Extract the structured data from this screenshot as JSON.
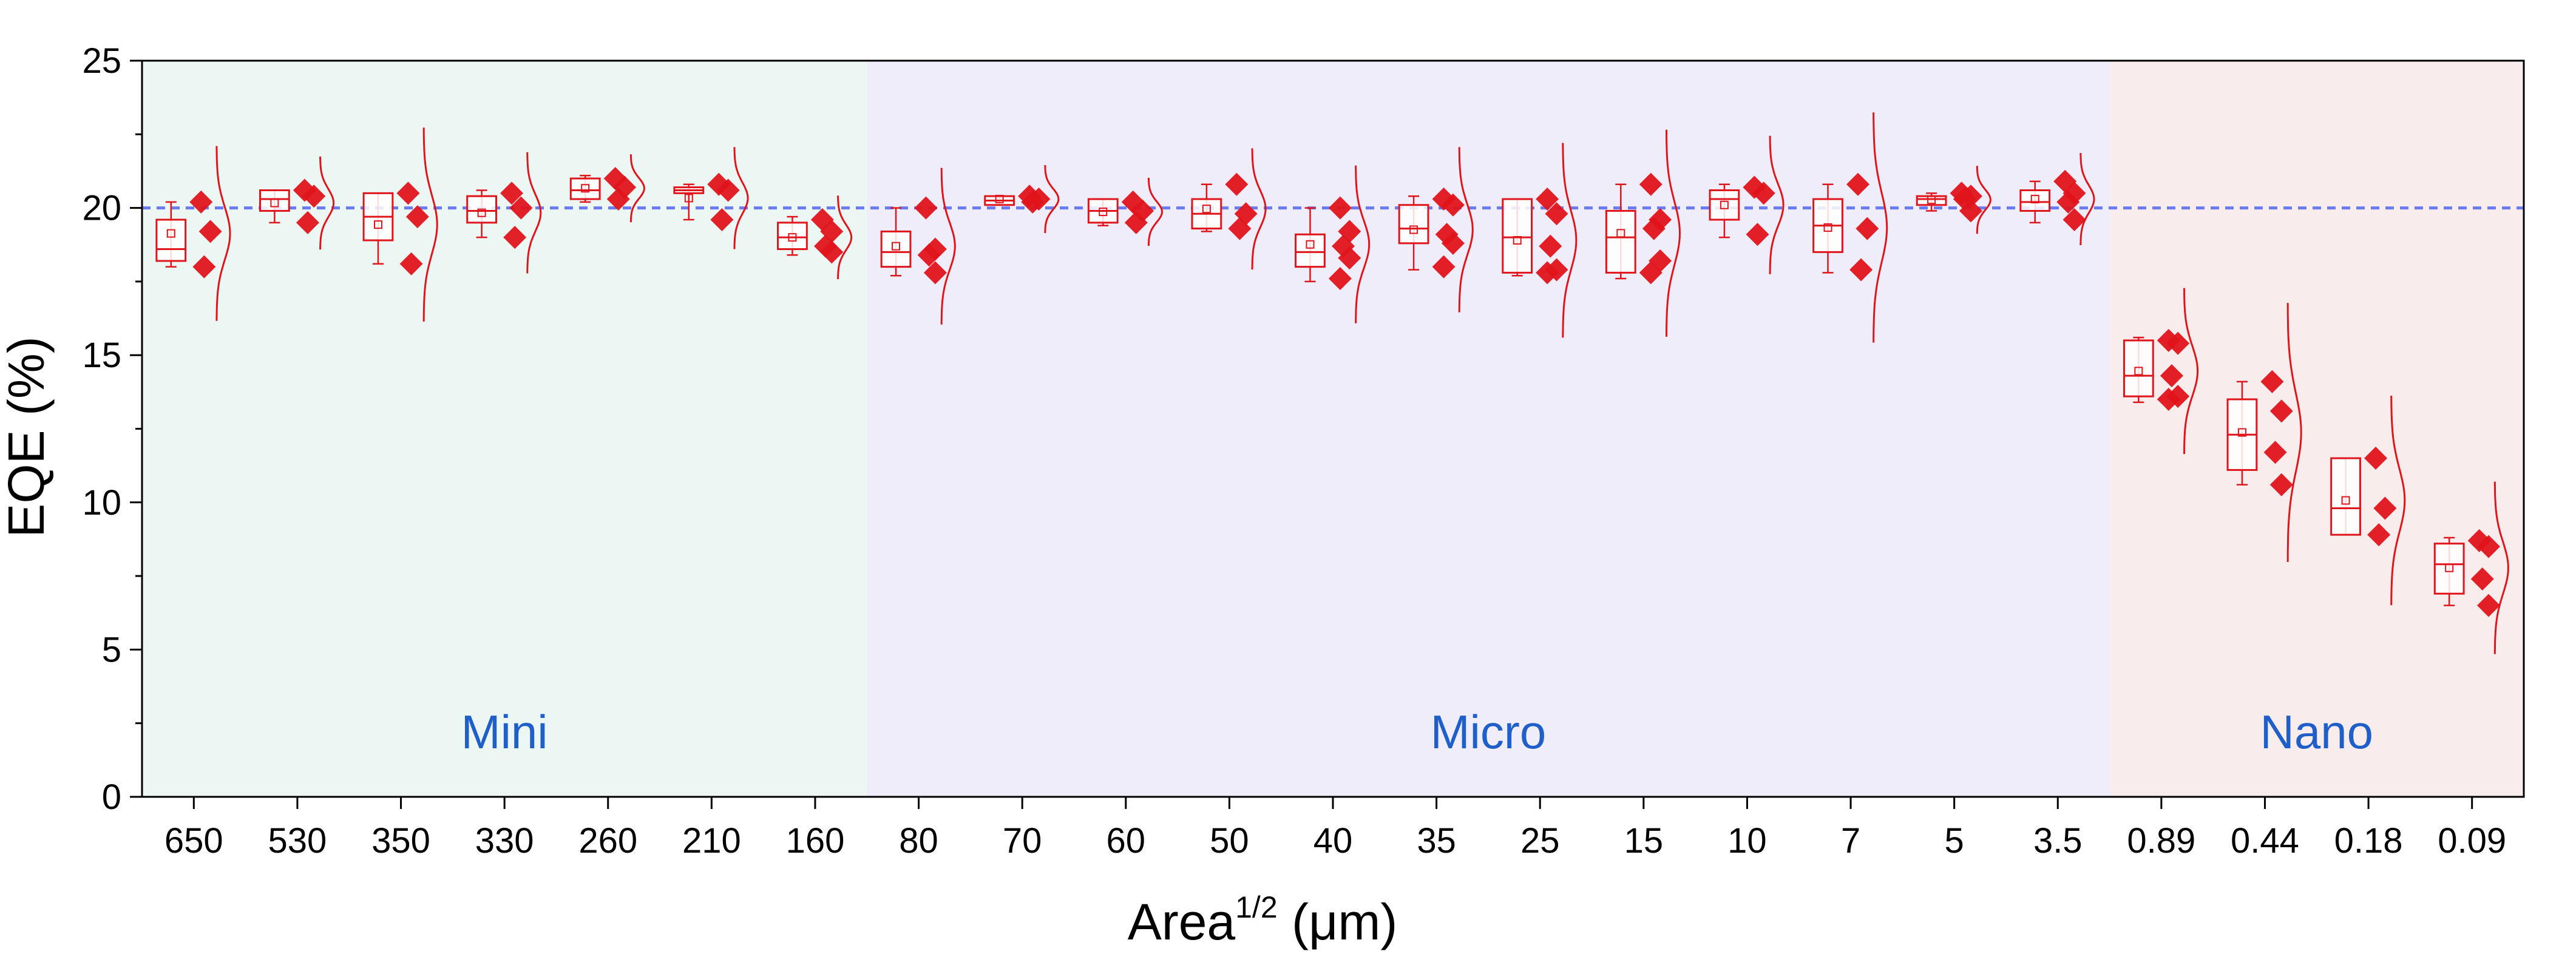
{
  "chart_data": {
    "type": "box",
    "ylabel": "EQE (%)",
    "xlabel": "Area",
    "xlabel_superscript": "1/2",
    "xlabel_unit": " (μm)",
    "ylim": [
      0,
      25
    ],
    "yticks": [
      "0",
      "5",
      "10",
      "15",
      "20",
      "25"
    ],
    "reference_line": 20,
    "reference_line_color": "#6b7cf0",
    "marker_color": "#e0141b",
    "box_color": "#e0141b",
    "regions": [
      {
        "label": "Mini",
        "start": 0,
        "end": 7,
        "color": "#ecf7f3",
        "label_color": "#1f5fc9"
      },
      {
        "label": "Micro",
        "start": 7,
        "end": 19,
        "color": "#eeedf9",
        "label_color": "#1f5fc9"
      },
      {
        "label": "Nano",
        "start": 19,
        "end": 23,
        "color": "#f8eced",
        "label_color": "#1f5fc9"
      }
    ],
    "categories": [
      "650",
      "530",
      "350",
      "330",
      "260",
      "210",
      "160",
      "80",
      "70",
      "60",
      "50",
      "40",
      "35",
      "25",
      "15",
      "10",
      "7",
      "5",
      "3.5",
      "0.89",
      "0.44",
      "0.18",
      "0.09"
    ],
    "series": [
      {
        "points": [
          20.2,
          19.2,
          18.0
        ],
        "box": [
          18.2,
          18.6,
          19.6
        ],
        "whisker": [
          18.0,
          20.2
        ]
      },
      {
        "points": [
          20.6,
          20.4,
          19.5
        ],
        "box": [
          19.9,
          20.3,
          20.6
        ],
        "whisker": [
          19.5,
          20.6
        ]
      },
      {
        "points": [
          20.5,
          19.7,
          18.1
        ],
        "box": [
          18.9,
          19.7,
          20.5
        ],
        "whisker": [
          18.1,
          20.5
        ]
      },
      {
        "points": [
          20.5,
          20.0,
          19.0
        ],
        "box": [
          19.5,
          19.9,
          20.4
        ],
        "whisker": [
          19.0,
          20.6
        ]
      },
      {
        "points": [
          21.0,
          20.7,
          20.3
        ],
        "box": [
          20.3,
          20.6,
          21.0
        ],
        "whisker": [
          20.2,
          21.1
        ]
      },
      {
        "points": [
          20.8,
          20.6,
          19.6
        ],
        "box": [
          20.5,
          20.6,
          20.7
        ],
        "whisker": [
          19.6,
          20.8
        ]
      },
      {
        "points": [
          19.6,
          19.2,
          18.7,
          18.5
        ],
        "box": [
          18.6,
          19.0,
          19.5
        ],
        "whisker": [
          18.4,
          19.7
        ]
      },
      {
        "points": [
          20.0,
          18.6,
          18.4,
          17.8
        ],
        "box": [
          18.0,
          18.5,
          19.2
        ],
        "whisker": [
          17.7,
          20.0
        ]
      },
      {
        "points": [
          20.4,
          20.3,
          20.2
        ],
        "box": [
          20.1,
          20.25,
          20.4
        ],
        "whisker": [
          20.1,
          20.4
        ]
      },
      {
        "points": [
          20.2,
          19.9,
          19.5
        ],
        "box": [
          19.5,
          19.9,
          20.3
        ],
        "whisker": [
          19.4,
          20.3
        ]
      },
      {
        "points": [
          20.8,
          19.8,
          19.3
        ],
        "box": [
          19.3,
          19.8,
          20.3
        ],
        "whisker": [
          19.2,
          20.8
        ]
      },
      {
        "points": [
          20.0,
          19.2,
          18.7,
          18.3,
          17.6
        ],
        "box": [
          18.0,
          18.5,
          19.1
        ],
        "whisker": [
          17.5,
          20.0
        ]
      },
      {
        "points": [
          20.3,
          20.1,
          19.1,
          18.8,
          18.0
        ],
        "box": [
          18.8,
          19.3,
          20.1
        ],
        "whisker": [
          17.9,
          20.4
        ]
      },
      {
        "points": [
          20.3,
          19.8,
          18.7,
          17.9,
          17.8
        ],
        "box": [
          17.8,
          19.0,
          20.3
        ],
        "whisker": [
          17.7,
          20.3
        ]
      },
      {
        "points": [
          20.8,
          19.6,
          19.3,
          18.2,
          17.8
        ],
        "box": [
          17.8,
          19.0,
          19.9
        ],
        "whisker": [
          17.6,
          20.8
        ]
      },
      {
        "points": [
          20.7,
          20.5,
          19.1
        ],
        "box": [
          19.6,
          20.3,
          20.6
        ],
        "whisker": [
          19.0,
          20.8
        ]
      },
      {
        "points": [
          20.8,
          19.3,
          17.9
        ],
        "box": [
          18.5,
          19.4,
          20.3
        ],
        "whisker": [
          17.8,
          20.8
        ]
      },
      {
        "points": [
          20.5,
          20.4,
          20.3,
          19.9
        ],
        "box": [
          20.1,
          20.3,
          20.4
        ],
        "whisker": [
          19.9,
          20.5
        ]
      },
      {
        "points": [
          20.9,
          20.5,
          20.2,
          19.6
        ],
        "box": [
          19.9,
          20.2,
          20.6
        ],
        "whisker": [
          19.5,
          20.9
        ]
      },
      {
        "points": [
          15.5,
          15.4,
          14.3,
          13.6,
          13.5
        ],
        "box": [
          13.6,
          14.3,
          15.5
        ],
        "whisker": [
          13.4,
          15.6
        ]
      },
      {
        "points": [
          14.1,
          13.1,
          11.7,
          10.6
        ],
        "box": [
          11.1,
          12.3,
          13.5
        ],
        "whisker": [
          10.6,
          14.1
        ]
      },
      {
        "points": [
          11.5,
          9.8,
          8.9
        ],
        "box": [
          8.9,
          9.8,
          11.5
        ],
        "whisker": [
          8.9,
          11.5
        ]
      },
      {
        "points": [
          8.7,
          8.5,
          7.4,
          6.5
        ],
        "box": [
          6.9,
          7.9,
          8.6
        ],
        "whisker": [
          6.5,
          8.8
        ]
      }
    ]
  }
}
